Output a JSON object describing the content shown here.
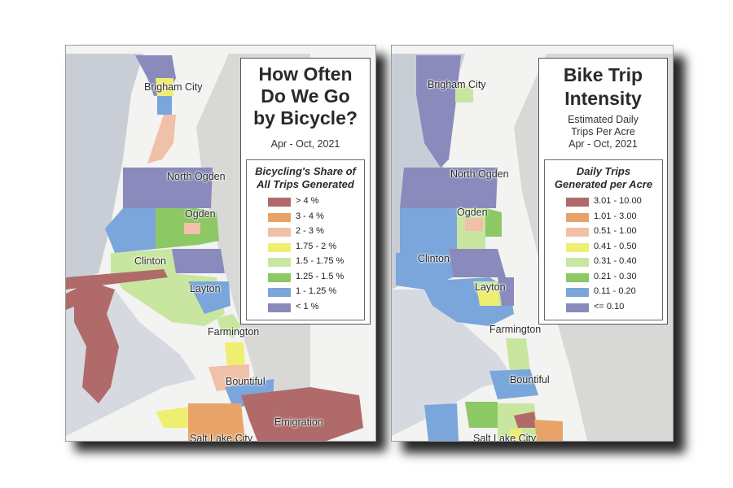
{
  "left_panel": {
    "title_lines": [
      "How Often",
      "Do We Go",
      "by Bicycle?"
    ],
    "subtitle": "Apr - Oct, 2021",
    "legend_title_lines": [
      "Bicycling's Share of",
      "All Trips Generated"
    ],
    "legend_items": [
      {
        "label": "> 4 %",
        "color": "#b06a6a"
      },
      {
        "label": "3 - 4 %",
        "color": "#e8a468"
      },
      {
        "label": "2 - 3 %",
        "color": "#f0c0a8"
      },
      {
        "label": "1.75 - 2 %",
        "color": "#eeee70"
      },
      {
        "label": "1.5 - 1.75 %",
        "color": "#c8e6a0"
      },
      {
        "label": "1.25 - 1.5 %",
        "color": "#8cc864"
      },
      {
        "label": "1 - 1.25 %",
        "color": "#7aa6dc"
      },
      {
        "label": "< 1 %",
        "color": "#8a8abc"
      }
    ],
    "cities": [
      "Brigham City",
      "North Ogden",
      "Ogden",
      "Clinton",
      "Layton",
      "Farmington",
      "Bountiful",
      "Emigration",
      "Salt Lake City"
    ]
  },
  "right_panel": {
    "title_lines": [
      "Bike Trip",
      "Intensity"
    ],
    "subtitle_lines": [
      "Estimated Daily",
      "Trips Per Acre",
      "Apr - Oct, 2021"
    ],
    "legend_title_lines": [
      "Daily Trips",
      "Generated per Acre"
    ],
    "legend_items": [
      {
        "label": "3.01 - 10.00",
        "color": "#b06a6a"
      },
      {
        "label": "1.01 - 3.00",
        "color": "#e8a468"
      },
      {
        "label": "0.51 - 1.00",
        "color": "#f0c0a8"
      },
      {
        "label": "0.41 - 0.50",
        "color": "#eeee70"
      },
      {
        "label": "0.31 - 0.40",
        "color": "#c8e6a0"
      },
      {
        "label": "0.21 - 0.30",
        "color": "#8cc864"
      },
      {
        "label": "0.11 - 0.20",
        "color": "#7aa6dc"
      },
      {
        "label": "<= 0.10",
        "color": "#8a8abc"
      }
    ],
    "cities": [
      "Brigham City",
      "North Ogden",
      "Ogden",
      "Clinton",
      "Layton",
      "Farmington",
      "Bountiful",
      "Salt Lake City"
    ]
  }
}
